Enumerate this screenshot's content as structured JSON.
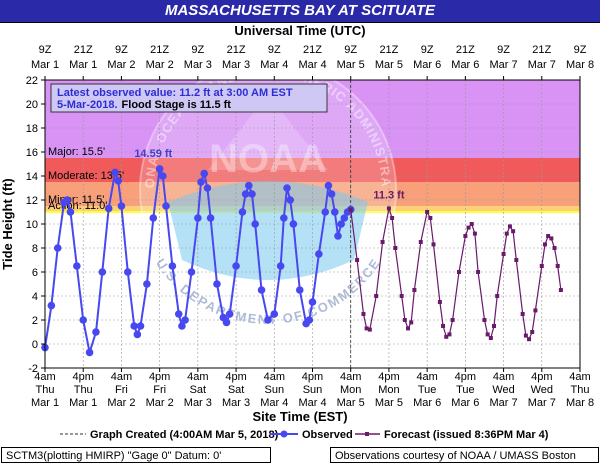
{
  "title": "MASSACHUSETTS BAY AT SCITUATE",
  "top_axis_title": "Universal Time (UTC)",
  "top_ticks": [
    {
      "hour": "9Z",
      "date": "Mar 1"
    },
    {
      "hour": "21Z",
      "date": "Mar 1"
    },
    {
      "hour": "9Z",
      "date": "Mar 2"
    },
    {
      "hour": "21Z",
      "date": "Mar 2"
    },
    {
      "hour": "9Z",
      "date": "Mar 3"
    },
    {
      "hour": "21Z",
      "date": "Mar 3"
    },
    {
      "hour": "9Z",
      "date": "Mar 4"
    },
    {
      "hour": "21Z",
      "date": "Mar 4"
    },
    {
      "hour": "9Z",
      "date": "Mar 5"
    },
    {
      "hour": "21Z",
      "date": "Mar 5"
    },
    {
      "hour": "9Z",
      "date": "Mar 6"
    },
    {
      "hour": "21Z",
      "date": "Mar 6"
    },
    {
      "hour": "9Z",
      "date": "Mar 7"
    },
    {
      "hour": "21Z",
      "date": "Mar 7"
    },
    {
      "hour": "9Z",
      "date": "Mar 8"
    }
  ],
  "bottom_ticks": [
    {
      "time": "4am",
      "day": "Thu",
      "date": "Mar 1"
    },
    {
      "time": "4pm",
      "day": "Thu",
      "date": "Mar 1"
    },
    {
      "time": "4am",
      "day": "Fri",
      "date": "Mar 2"
    },
    {
      "time": "4pm",
      "day": "Fri",
      "date": "Mar 2"
    },
    {
      "time": "4am",
      "day": "Sat",
      "date": "Mar 3"
    },
    {
      "time": "4pm",
      "day": "Sat",
      "date": "Mar 3"
    },
    {
      "time": "4am",
      "day": "Sun",
      "date": "Mar 4"
    },
    {
      "time": "4pm",
      "day": "Sun",
      "date": "Mar 4"
    },
    {
      "time": "4am",
      "day": "Mon",
      "date": "Mar 5"
    },
    {
      "time": "4pm",
      "day": "Mon",
      "date": "Mar 5"
    },
    {
      "time": "4am",
      "day": "Tue",
      "date": "Mar 6"
    },
    {
      "time": "4pm",
      "day": "Tue",
      "date": "Mar 6"
    },
    {
      "time": "4am",
      "day": "Wed",
      "date": "Mar 7"
    },
    {
      "time": "4pm",
      "day": "Wed",
      "date": "Mar 7"
    },
    {
      "time": "4am",
      "day": "Thu",
      "date": "Mar 8"
    }
  ],
  "info_box": {
    "line1": "Latest observed value: 11.2 ft at 3:00 AM EST",
    "line2_date": "5-Mar-2018.",
    "line2_flood": "Flood Stage is 11.5 ft"
  },
  "legend": {
    "graph_created": "Graph Created (4:00AM Mar 5, 2018)",
    "observed": "Observed",
    "forecast": "Forecast (issued 8:36PM Mar 4)"
  },
  "footer": {
    "left": "SCTM3(plotting HMIRP) \"Gage 0\" Datum:  0'",
    "right": "Observations courtesy of NOAA / UMASS Boston"
  },
  "watermark": {
    "top_text": "NATIONAL OCEANIC AND ATMOSPHERIC ADMINISTRATION",
    "bottom_text": "U.S. DEPARTMENT OF COMMERCE",
    "center_text": "NOAA"
  },
  "colors": {
    "title_bar": "#2a2aa8",
    "major_band": "#d893f5",
    "major_to_moderate": "#f05a5a",
    "moderate_to_minor": "#f7a07a",
    "minor_to_action": "#fbd07a",
    "action_line": "#ffff33",
    "observed": "#4848f0",
    "forecast": "#6a1a6a",
    "annotation": "#4040c0"
  },
  "chart_data": {
    "type": "line",
    "xlabel": "Site Time (EST)",
    "ylabel": "Tide Height (ft)",
    "x_unit": "hours since 4am EST Thu Mar 1",
    "xlim": [
      0,
      168
    ],
    "ylim": [
      -2,
      22
    ],
    "yticks": [
      -2,
      0,
      2,
      4,
      6,
      8,
      10,
      12,
      14,
      16,
      18,
      20,
      22
    ],
    "grid": true,
    "thresholds": [
      {
        "name": "Major",
        "label": "Major: 15.5'",
        "value": 15.5
      },
      {
        "name": "Moderate",
        "label": "Moderate: 13.5'",
        "value": 13.5
      },
      {
        "name": "Minor",
        "label": "Minor: 11.5'",
        "value": 11.5
      },
      {
        "name": "Action",
        "label": "Action: 11.0'",
        "value": 11.0
      }
    ],
    "graph_created_x": 96,
    "annotations": [
      {
        "text": "14.59 ft",
        "x": 34,
        "y": 14.59
      },
      {
        "text": "11.3 ft",
        "x": 108,
        "y": 11.3
      }
    ],
    "series": [
      {
        "name": "Observed",
        "points": [
          [
            0,
            -0.3
          ],
          [
            2,
            3.2
          ],
          [
            4,
            8
          ],
          [
            6,
            11.8
          ],
          [
            7,
            12
          ],
          [
            8,
            11
          ],
          [
            10,
            6.5
          ],
          [
            12,
            2
          ],
          [
            14,
            -0.7
          ],
          [
            16,
            1
          ],
          [
            18,
            6
          ],
          [
            20,
            11.3
          ],
          [
            22,
            14.3
          ],
          [
            23,
            13.6
          ],
          [
            24,
            11.5
          ],
          [
            26,
            6
          ],
          [
            28,
            1.5
          ],
          [
            29,
            0.8
          ],
          [
            30,
            1.5
          ],
          [
            32,
            5
          ],
          [
            34,
            10.5
          ],
          [
            36,
            14.59
          ],
          [
            37,
            14
          ],
          [
            38,
            11.5
          ],
          [
            40,
            6.5
          ],
          [
            42,
            2.5
          ],
          [
            43,
            1.5
          ],
          [
            44,
            2
          ],
          [
            46,
            6
          ],
          [
            48,
            10.5
          ],
          [
            49,
            13.5
          ],
          [
            50,
            14.2
          ],
          [
            51,
            13
          ],
          [
            52,
            10.5
          ],
          [
            54,
            5
          ],
          [
            56,
            2.2
          ],
          [
            57,
            1.8
          ],
          [
            58,
            2.5
          ],
          [
            60,
            6.5
          ],
          [
            62,
            11
          ],
          [
            63,
            12.5
          ],
          [
            64,
            13.2
          ],
          [
            65,
            12.5
          ],
          [
            66,
            10
          ],
          [
            68,
            4.5
          ],
          [
            70,
            2
          ],
          [
            72,
            2.5
          ],
          [
            74,
            6.5
          ],
          [
            75,
            10.5
          ],
          [
            76,
            13
          ],
          [
            77,
            12
          ],
          [
            78,
            10
          ],
          [
            80,
            4.5
          ],
          [
            82,
            1.7
          ],
          [
            83,
            2
          ],
          [
            84,
            3.5
          ],
          [
            86,
            7.5
          ],
          [
            88,
            11
          ],
          [
            89,
            13.2
          ],
          [
            90,
            12.5
          ],
          [
            91,
            11
          ],
          [
            92,
            9
          ],
          [
            93,
            10
          ],
          [
            94,
            10.5
          ],
          [
            95,
            11
          ],
          [
            96,
            11.2
          ]
        ]
      },
      {
        "name": "Forecast",
        "points": [
          [
            96,
            11.2
          ],
          [
            98,
            7
          ],
          [
            100,
            2.5
          ],
          [
            101,
            1.3
          ],
          [
            102,
            1.2
          ],
          [
            104,
            4
          ],
          [
            106,
            8.5
          ],
          [
            108,
            11.3
          ],
          [
            109,
            10.5
          ],
          [
            110,
            8
          ],
          [
            112,
            4
          ],
          [
            113,
            2
          ],
          [
            114,
            1.3
          ],
          [
            115,
            1.8
          ],
          [
            116,
            4.5
          ],
          [
            118,
            8.5
          ],
          [
            120,
            11
          ],
          [
            121,
            10.5
          ],
          [
            122,
            8.3
          ],
          [
            124,
            3.5
          ],
          [
            125,
            1.5
          ],
          [
            126,
            0.6
          ],
          [
            127,
            0.8
          ],
          [
            128,
            2
          ],
          [
            130,
            6
          ],
          [
            132,
            9
          ],
          [
            133,
            9.7
          ],
          [
            134,
            10
          ],
          [
            135,
            9.2
          ],
          [
            136,
            6
          ],
          [
            138,
            2
          ],
          [
            139,
            0.8
          ],
          [
            140,
            0.5
          ],
          [
            141,
            1.5
          ],
          [
            142,
            4
          ],
          [
            144,
            7.5
          ],
          [
            145,
            9.2
          ],
          [
            146,
            9.8
          ],
          [
            147,
            9.4
          ],
          [
            148,
            7
          ],
          [
            150,
            2.5
          ],
          [
            151,
            0.7
          ],
          [
            152,
            0.4
          ],
          [
            153,
            1
          ],
          [
            154,
            2.8
          ],
          [
            156,
            6.5
          ],
          [
            157,
            8.3
          ],
          [
            158,
            9
          ],
          [
            159,
            8.8
          ],
          [
            160,
            8
          ],
          [
            161,
            6.5
          ],
          [
            162,
            4.5
          ]
        ]
      }
    ]
  }
}
